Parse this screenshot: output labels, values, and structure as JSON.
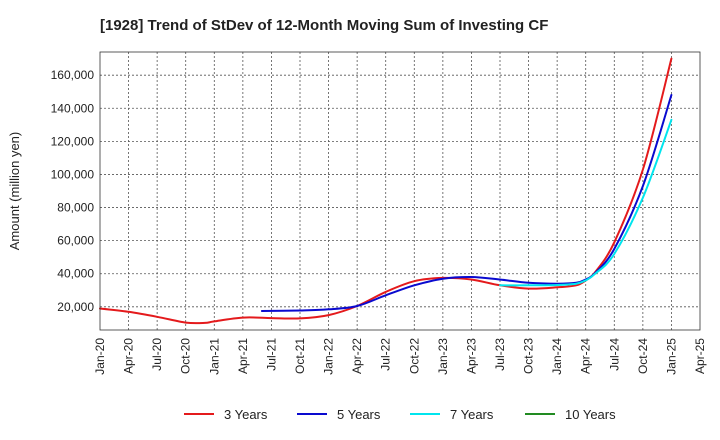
{
  "chart_data": {
    "type": "line",
    "title": "[1928]  Trend of StDev of 12-Month Moving Sum of Investing CF",
    "ylabel": "Amount (million yen)",
    "xlabel": "",
    "x_ticks": [
      "Jan-20",
      "Apr-20",
      "Jul-20",
      "Oct-20",
      "Jan-21",
      "Apr-21",
      "Jul-21",
      "Oct-21",
      "Jan-22",
      "Apr-22",
      "Jul-22",
      "Oct-22",
      "Jan-23",
      "Apr-23",
      "Jul-23",
      "Oct-23",
      "Jan-24",
      "Apr-24",
      "Jul-24",
      "Oct-24",
      "Jan-25",
      "Apr-25"
    ],
    "y_ticks": [
      20000,
      40000,
      60000,
      80000,
      100000,
      120000,
      140000,
      160000
    ],
    "y_tick_labels": [
      "20,000",
      "40,000",
      "60,000",
      "80,000",
      "100,000",
      "120,000",
      "140,000",
      "160,000"
    ],
    "ylim": [
      6000,
      174000
    ],
    "grid": true,
    "legend_position": "bottom",
    "series": [
      {
        "name": "3 Years",
        "color": "#e41a1c",
        "points": [
          [
            "2020-01",
            19000
          ],
          [
            "2020-04",
            17000
          ],
          [
            "2020-07",
            14000
          ],
          [
            "2020-10",
            10500
          ],
          [
            "2020-12",
            10300
          ],
          [
            "2021-01",
            11200
          ],
          [
            "2021-04",
            13500
          ],
          [
            "2021-07",
            13200
          ],
          [
            "2021-10",
            13000
          ],
          [
            "2022-01",
            15000
          ],
          [
            "2022-04",
            20500
          ],
          [
            "2022-07",
            29000
          ],
          [
            "2022-10",
            35500
          ],
          [
            "2023-01",
            37500
          ],
          [
            "2023-04",
            36500
          ],
          [
            "2023-07",
            33000
          ],
          [
            "2023-10",
            31000
          ],
          [
            "2024-01",
            31800
          ],
          [
            "2024-03",
            33000
          ],
          [
            "2024-04",
            36000
          ],
          [
            "2024-05",
            41000
          ],
          [
            "2024-07",
            59000
          ],
          [
            "2024-10",
            103000
          ],
          [
            "2025-01",
            170000
          ]
        ]
      },
      {
        "name": "5 Years",
        "color": "#0a0acf",
        "points": [
          [
            "2021-06",
            17500
          ],
          [
            "2021-10",
            17800
          ],
          [
            "2022-01",
            18500
          ],
          [
            "2022-04",
            20500
          ],
          [
            "2022-07",
            27000
          ],
          [
            "2022-10",
            33000
          ],
          [
            "2023-01",
            37000
          ],
          [
            "2023-04",
            38000
          ],
          [
            "2023-07",
            36500
          ],
          [
            "2023-10",
            34500
          ],
          [
            "2024-01",
            34000
          ],
          [
            "2024-03",
            34500
          ],
          [
            "2024-04",
            36500
          ],
          [
            "2024-05",
            40500
          ],
          [
            "2024-07",
            55000
          ],
          [
            "2024-10",
            93000
          ],
          [
            "2025-01",
            148000
          ]
        ]
      },
      {
        "name": "7 Years",
        "color": "#00e5ee",
        "points": [
          [
            "2023-07",
            33000
          ],
          [
            "2023-10",
            33000
          ],
          [
            "2024-01",
            33200
          ],
          [
            "2024-03",
            34000
          ],
          [
            "2024-04",
            36000
          ],
          [
            "2024-05",
            40000
          ],
          [
            "2024-07",
            52000
          ],
          [
            "2024-10",
            86000
          ],
          [
            "2025-01",
            133000
          ]
        ]
      },
      {
        "name": "10 Years",
        "color": "#228b22",
        "points": []
      }
    ]
  }
}
